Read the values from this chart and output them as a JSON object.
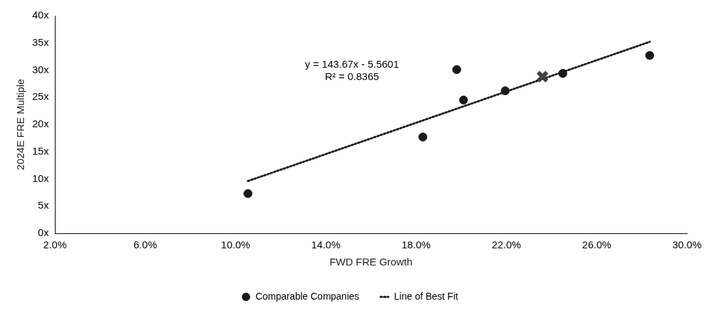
{
  "chart_data": {
    "type": "scatter",
    "xlabel": "FWD FRE Growth",
    "ylabel": "2024E FRE Multiple",
    "annotations": [
      "y = 143.67x - 5.5601",
      "R² = 0.8365"
    ],
    "xlim": [
      2,
      30
    ],
    "xticks": [
      {
        "value": 2,
        "label": "2.0%"
      },
      {
        "value": 6,
        "label": "6.0%"
      },
      {
        "value": 10,
        "label": "10.0%"
      },
      {
        "value": 14,
        "label": "14.0%"
      },
      {
        "value": 18,
        "label": "18.0%"
      },
      {
        "value": 22,
        "label": "22.0%"
      },
      {
        "value": 26,
        "label": "26.0%"
      },
      {
        "value": 30,
        "label": "30.0%"
      }
    ],
    "ylim": [
      0,
      40
    ],
    "yticks": [
      {
        "value": 0,
        "label": "0x"
      },
      {
        "value": 5,
        "label": "5x"
      },
      {
        "value": 10,
        "label": "10x"
      },
      {
        "value": 15,
        "label": "15x"
      },
      {
        "value": 20,
        "label": "20x"
      },
      {
        "value": 25,
        "label": "25x"
      },
      {
        "value": 30,
        "label": "30x"
      },
      {
        "value": 35,
        "label": "35x"
      },
      {
        "value": 40,
        "label": "40x"
      }
    ],
    "grid": false,
    "legend": "bottom",
    "series": [
      {
        "type": "scatter",
        "marker": "cross",
        "color": "#404040",
        "x": [
          23.6
        ],
        "values": [
          28.8
        ]
      },
      {
        "type": "scatter",
        "name": "Comparable Companies",
        "marker": "circle",
        "color": "#1a1a1a",
        "x": [
          10.55,
          18.3,
          19.8,
          20.1,
          21.95,
          24.5,
          28.35
        ],
        "values": [
          7.3,
          17.7,
          30.1,
          24.5,
          26.2,
          29.4,
          32.7
        ]
      },
      {
        "type": "line",
        "name": "Line of Best Fit",
        "marker": "none",
        "line_style": "dotted",
        "color": "#1a1a1a",
        "x": [
          10.55,
          28.35
        ],
        "values": [
          9.6,
          35.2
        ]
      }
    ]
  }
}
